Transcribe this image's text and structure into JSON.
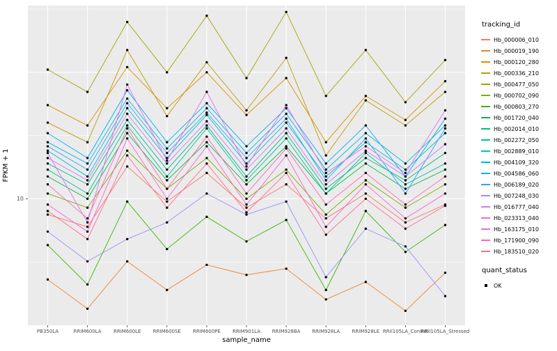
{
  "figure": {
    "background": "#FFFFFF",
    "panel_background": "#EBEBEB",
    "grid_color": "#FFFFFF",
    "point_color": "#000000",
    "axis_text_color": "#4D4D4D"
  },
  "axes": {
    "x_title": "sample_name",
    "y_title": "FPKM + 1",
    "y_tick_labels": [
      "10"
    ],
    "y_tick_values": [
      10
    ]
  },
  "legend": {
    "tracking_title": "tracking_id",
    "quant_title": "quant_status",
    "quant_items": [
      {
        "label": "OK",
        "color": "#000000"
      }
    ]
  },
  "chart_data": {
    "type": "line",
    "title": "",
    "xlabel": "sample_name",
    "ylabel": "FPKM + 1",
    "y_scale": "log10",
    "ylim": [
      1,
      337
    ],
    "grid": true,
    "legend_position": "right",
    "point_color": "#000000",
    "x": [
      "PB350LA",
      "RRIM600LA",
      "RRIM600LE",
      "RRIM600SE",
      "RRIM600PE",
      "RRIM901LA",
      "RRIM928BA",
      "RRIM928LA",
      "RRIM928LE",
      "RRII105LA_Control",
      "RRII105LA_Stressed"
    ],
    "series": [
      {
        "name": "Hb_000006_010",
        "color": "#F8766D",
        "values": [
          7.5,
          6,
          18,
          9.5,
          16,
          8.5,
          13,
          7,
          11,
          6.5,
          9
        ]
      },
      {
        "name": "Hb_000019_190",
        "color": "#EA8331",
        "values": [
          2.3,
          1.35,
          3.2,
          1.9,
          3,
          2.5,
          2.8,
          1.6,
          2.2,
          1.3,
          2.6
        ]
      },
      {
        "name": "Hb_000120_280",
        "color": "#D89000",
        "values": [
          55,
          38,
          110,
          52,
          100,
          46,
          90,
          28,
          65,
          42,
          85
        ]
      },
      {
        "name": "Hb_000336_210",
        "color": "#C09B00",
        "values": [
          40,
          28,
          150,
          45,
          120,
          50,
          130,
          22,
          60,
          38,
          70
        ]
      },
      {
        "name": "Hb_000477_050",
        "color": "#A3A500",
        "values": [
          105,
          70,
          250,
          100,
          280,
          90,
          300,
          65,
          150,
          58,
          125
        ]
      },
      {
        "name": "Hb_000702_090",
        "color": "#7CAE00",
        "values": [
          11,
          8.5,
          24,
          12,
          21,
          10,
          17,
          7.5,
          14,
          8.5,
          13
        ]
      },
      {
        "name": "Hb_000803_270",
        "color": "#39B600",
        "values": [
          4.3,
          2.1,
          9.5,
          4,
          7.2,
          4.6,
          6.8,
          1.9,
          8,
          3.8,
          6.2
        ]
      },
      {
        "name": "Hb_001720_040",
        "color": "#00BB4E",
        "values": [
          15,
          10,
          33,
          14,
          28,
          13,
          26,
          11,
          19,
          12,
          17
        ]
      },
      {
        "name": "Hb_002014_010",
        "color": "#00BF7D",
        "values": [
          19,
          13,
          42,
          17,
          38,
          15,
          33,
          12,
          21,
          14,
          23
        ]
      },
      {
        "name": "Hb_002272_050",
        "color": "#00C1A3",
        "values": [
          17,
          11,
          38,
          15,
          36,
          14,
          30,
          11,
          23,
          13,
          19
        ]
      },
      {
        "name": "Hb_002889_010",
        "color": "#00BFC4",
        "values": [
          24,
          15,
          52,
          21,
          46,
          19,
          40,
          15,
          28,
          17,
          33
        ]
      },
      {
        "name": "Hb_004109_320",
        "color": "#00BAE0",
        "values": [
          28,
          19,
          62,
          25,
          52,
          23,
          47,
          17,
          33,
          19,
          38
        ]
      },
      {
        "name": "Hb_004586_060",
        "color": "#00B0F6",
        "values": [
          33,
          21,
          72,
          28,
          57,
          26,
          52,
          19,
          38,
          15,
          43
        ]
      },
      {
        "name": "Hb_006189_020",
        "color": "#35A2FF",
        "values": [
          26,
          17,
          57,
          23,
          48,
          21,
          43,
          14,
          30,
          11,
          36
        ]
      },
      {
        "name": "Hb_007248_030",
        "color": "#9590FF",
        "values": [
          5.5,
          3.2,
          4.8,
          6.5,
          11,
          7.5,
          9.5,
          2.4,
          5.8,
          4.2,
          1.7
        ]
      },
      {
        "name": "Hb_016777_040",
        "color": "#C77CFF",
        "values": [
          21,
          14,
          47,
          19,
          41,
          17,
          36,
          13,
          24,
          15,
          27
        ]
      },
      {
        "name": "Hb_023313_040",
        "color": "#E76BF3",
        "values": [
          23,
          6.5,
          80,
          20,
          70,
          18,
          55,
          16,
          26,
          16,
          50
        ]
      },
      {
        "name": "Hb_163175_010",
        "color": "#FA62DB",
        "values": [
          9,
          5.5,
          30,
          10,
          26,
          9,
          22,
          6,
          13,
          7,
          11
        ]
      },
      {
        "name": "Hb_171900_090",
        "color": "#FF62BC",
        "values": [
          13,
          7,
          36,
          12,
          31,
          11,
          25,
          9,
          16,
          9,
          15
        ]
      },
      {
        "name": "Hb_183510_020",
        "color": "#FF6A98",
        "values": [
          8,
          4.8,
          22,
          8.5,
          19,
          7.8,
          16,
          5.2,
          10,
          5.8,
          8.8
        ]
      }
    ]
  }
}
